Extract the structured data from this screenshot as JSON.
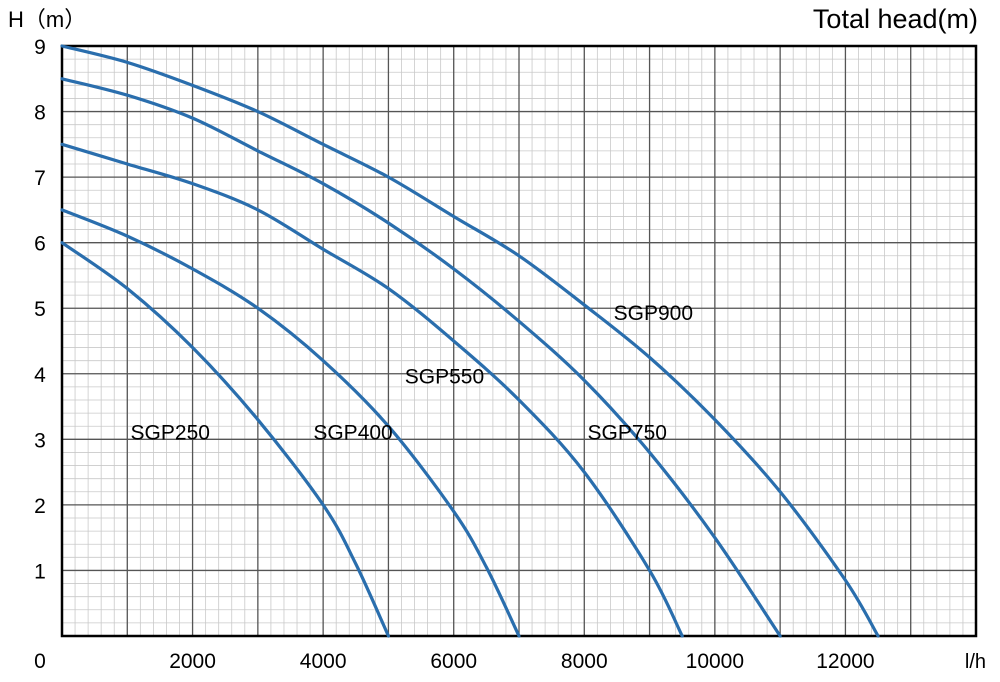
{
  "chart_data": {
    "type": "line",
    "title": "Total head(m)",
    "ylabel": "H（m）",
    "xlabel": "l/h",
    "xlim": [
      0,
      14000
    ],
    "ylim": [
      0,
      9
    ],
    "xticks": [
      0,
      2000,
      4000,
      6000,
      8000,
      10000,
      12000
    ],
    "yticks": [
      1,
      2,
      3,
      4,
      5,
      6,
      7,
      8,
      9
    ],
    "grid": true,
    "minor_grid": true,
    "line_color": "#2a6ead",
    "series": [
      {
        "name": "SGP250",
        "x": [
          0,
          1000,
          2000,
          3000,
          4000,
          4500,
          5000
        ],
        "y": [
          6.0,
          5.3,
          4.4,
          3.3,
          2.0,
          1.1,
          0
        ]
      },
      {
        "name": "SGP400",
        "x": [
          0,
          1000,
          2000,
          3000,
          4000,
          5000,
          6000,
          6500,
          7000
        ],
        "y": [
          6.5,
          6.1,
          5.6,
          5.0,
          4.2,
          3.2,
          1.9,
          1.05,
          0
        ]
      },
      {
        "name": "SGP550",
        "x": [
          0,
          1000,
          2000,
          3000,
          4000,
          5000,
          6000,
          7000,
          8000,
          9000,
          9500
        ],
        "y": [
          7.5,
          7.2,
          6.9,
          6.5,
          5.9,
          5.3,
          4.5,
          3.6,
          2.5,
          1.0,
          0
        ]
      },
      {
        "name": "SGP750",
        "x": [
          0,
          1000,
          2000,
          3000,
          4000,
          5000,
          6000,
          7000,
          8000,
          9000,
          10000,
          11000
        ],
        "y": [
          8.5,
          8.25,
          7.9,
          7.4,
          6.9,
          6.3,
          5.6,
          4.8,
          3.9,
          2.8,
          1.5,
          0
        ]
      },
      {
        "name": "SGP900",
        "x": [
          0,
          1000,
          2000,
          3000,
          4000,
          5000,
          6000,
          7000,
          8000,
          9000,
          10000,
          11000,
          12000,
          12500
        ],
        "y": [
          9.0,
          8.75,
          8.4,
          8.0,
          7.5,
          7.0,
          6.4,
          5.8,
          5.05,
          4.25,
          3.3,
          2.2,
          0.85,
          0
        ]
      }
    ]
  }
}
